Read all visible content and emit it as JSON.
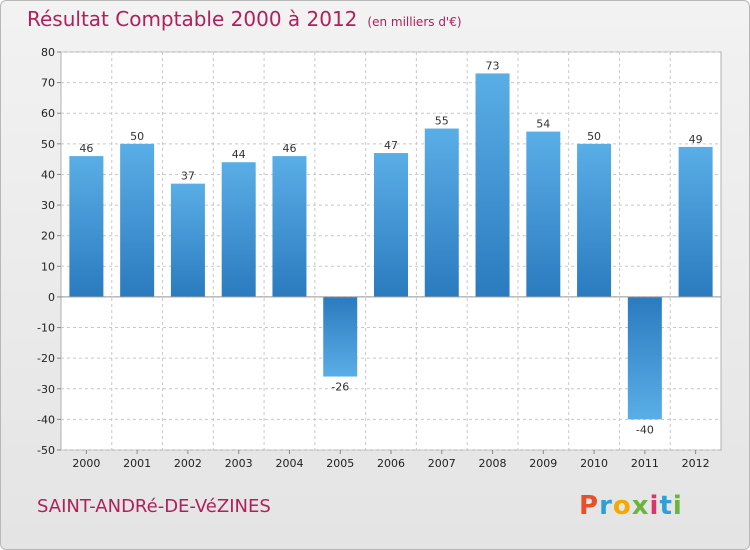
{
  "header": {
    "title": "Résultat Comptable 2000 à 2012",
    "unit": "(en milliers d'€)"
  },
  "footer": {
    "commune": "SAINT-ANDRé-DE-VéZINES",
    "logo": [
      "P",
      "r",
      "o",
      "x",
      "i",
      "t",
      "i"
    ]
  },
  "colors": {
    "bar_light": "#5aaee6",
    "bar_dark": "#2a7bbf",
    "title": "#b0205a",
    "grid": "#c8c8c8"
  },
  "chart_data": {
    "type": "bar",
    "title": "Résultat Comptable 2000 à 2012",
    "categories": [
      "2000",
      "2001",
      "2002",
      "2003",
      "2004",
      "2005",
      "2006",
      "2007",
      "2008",
      "2009",
      "2010",
      "2011",
      "2012"
    ],
    "values": [
      46,
      50,
      37,
      44,
      46,
      -26,
      47,
      55,
      73,
      54,
      50,
      -40,
      49
    ],
    "ylim": [
      -50,
      80
    ],
    "yticks": [
      -50,
      -40,
      -30,
      -20,
      -10,
      0,
      10,
      20,
      30,
      40,
      50,
      60,
      70,
      80
    ],
    "grid": true,
    "legend": "none"
  }
}
